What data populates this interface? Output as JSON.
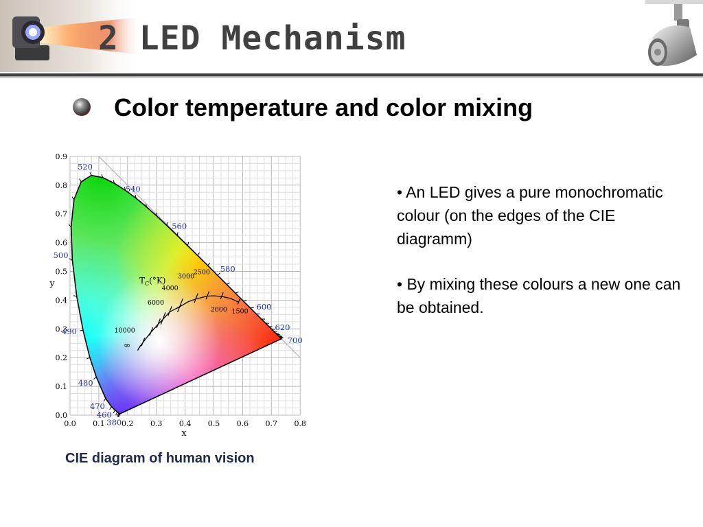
{
  "slide": {
    "title": "2 LED Mechanism",
    "subtitle": "Color temperature and color mixing",
    "points": [
      "• An LED gives a pure monochromatic colour (on the edges of the CIE diagramm)",
      "• By mixing these colours a new one can be obtained."
    ],
    "caption": "CIE diagram of human vision"
  },
  "colors": {
    "title": "#404040",
    "rule": "#404040",
    "caption": "#1f2a4a",
    "wavelength_labels": "#2233aa"
  },
  "icons": {
    "left_header": "projector-beam-icon",
    "right_header": "track-spotlight-icon",
    "bullet": "sphere-bullet-icon"
  },
  "diagram": {
    "x_axis_label": "x",
    "y_axis_label": "y",
    "x_ticks": [
      "0.0",
      "0.1",
      "0.2",
      "0.3",
      "0.4",
      "0.5",
      "0.6",
      "0.7",
      "0.8"
    ],
    "y_ticks": [
      "0.0",
      "0.1",
      "0.2",
      "0.3",
      "0.4",
      "0.5",
      "0.6",
      "0.7",
      "0.8",
      "0.9"
    ],
    "wavelengths": [
      {
        "label": "380",
        "x": 0.174,
        "y": 0.005
      },
      {
        "label": "460",
        "x": 0.144,
        "y": 0.03
      },
      {
        "label": "470",
        "x": 0.124,
        "y": 0.058
      },
      {
        "label": "480",
        "x": 0.091,
        "y": 0.133
      },
      {
        "label": "490",
        "x": 0.045,
        "y": 0.295
      },
      {
        "label": "500",
        "x": 0.008,
        "y": 0.538
      },
      {
        "label": "520",
        "x": 0.074,
        "y": 0.834
      },
      {
        "label": "540",
        "x": 0.23,
        "y": 0.754
      },
      {
        "label": "560",
        "x": 0.373,
        "y": 0.624
      },
      {
        "label": "580",
        "x": 0.512,
        "y": 0.487
      },
      {
        "label": "600",
        "x": 0.627,
        "y": 0.372
      },
      {
        "label": "620",
        "x": 0.691,
        "y": 0.308
      },
      {
        "label": "700",
        "x": 0.735,
        "y": 0.265
      }
    ],
    "locus_label_main": "T",
    "locus_label_sub": "C",
    "locus_label_unit": "(°K)",
    "temperatures": [
      {
        "label": "10000",
        "x": 0.281,
        "y": 0.288
      },
      {
        "label": "6000",
        "x": 0.322,
        "y": 0.332
      },
      {
        "label": "4000",
        "x": 0.381,
        "y": 0.377
      },
      {
        "label": "3000",
        "x": 0.437,
        "y": 0.404
      },
      {
        "label": "2500",
        "x": 0.477,
        "y": 0.414
      },
      {
        "label": "2000",
        "x": 0.527,
        "y": 0.413
      },
      {
        "label": "1500",
        "x": 0.586,
        "y": 0.393
      }
    ],
    "infinity_label": "∞"
  }
}
